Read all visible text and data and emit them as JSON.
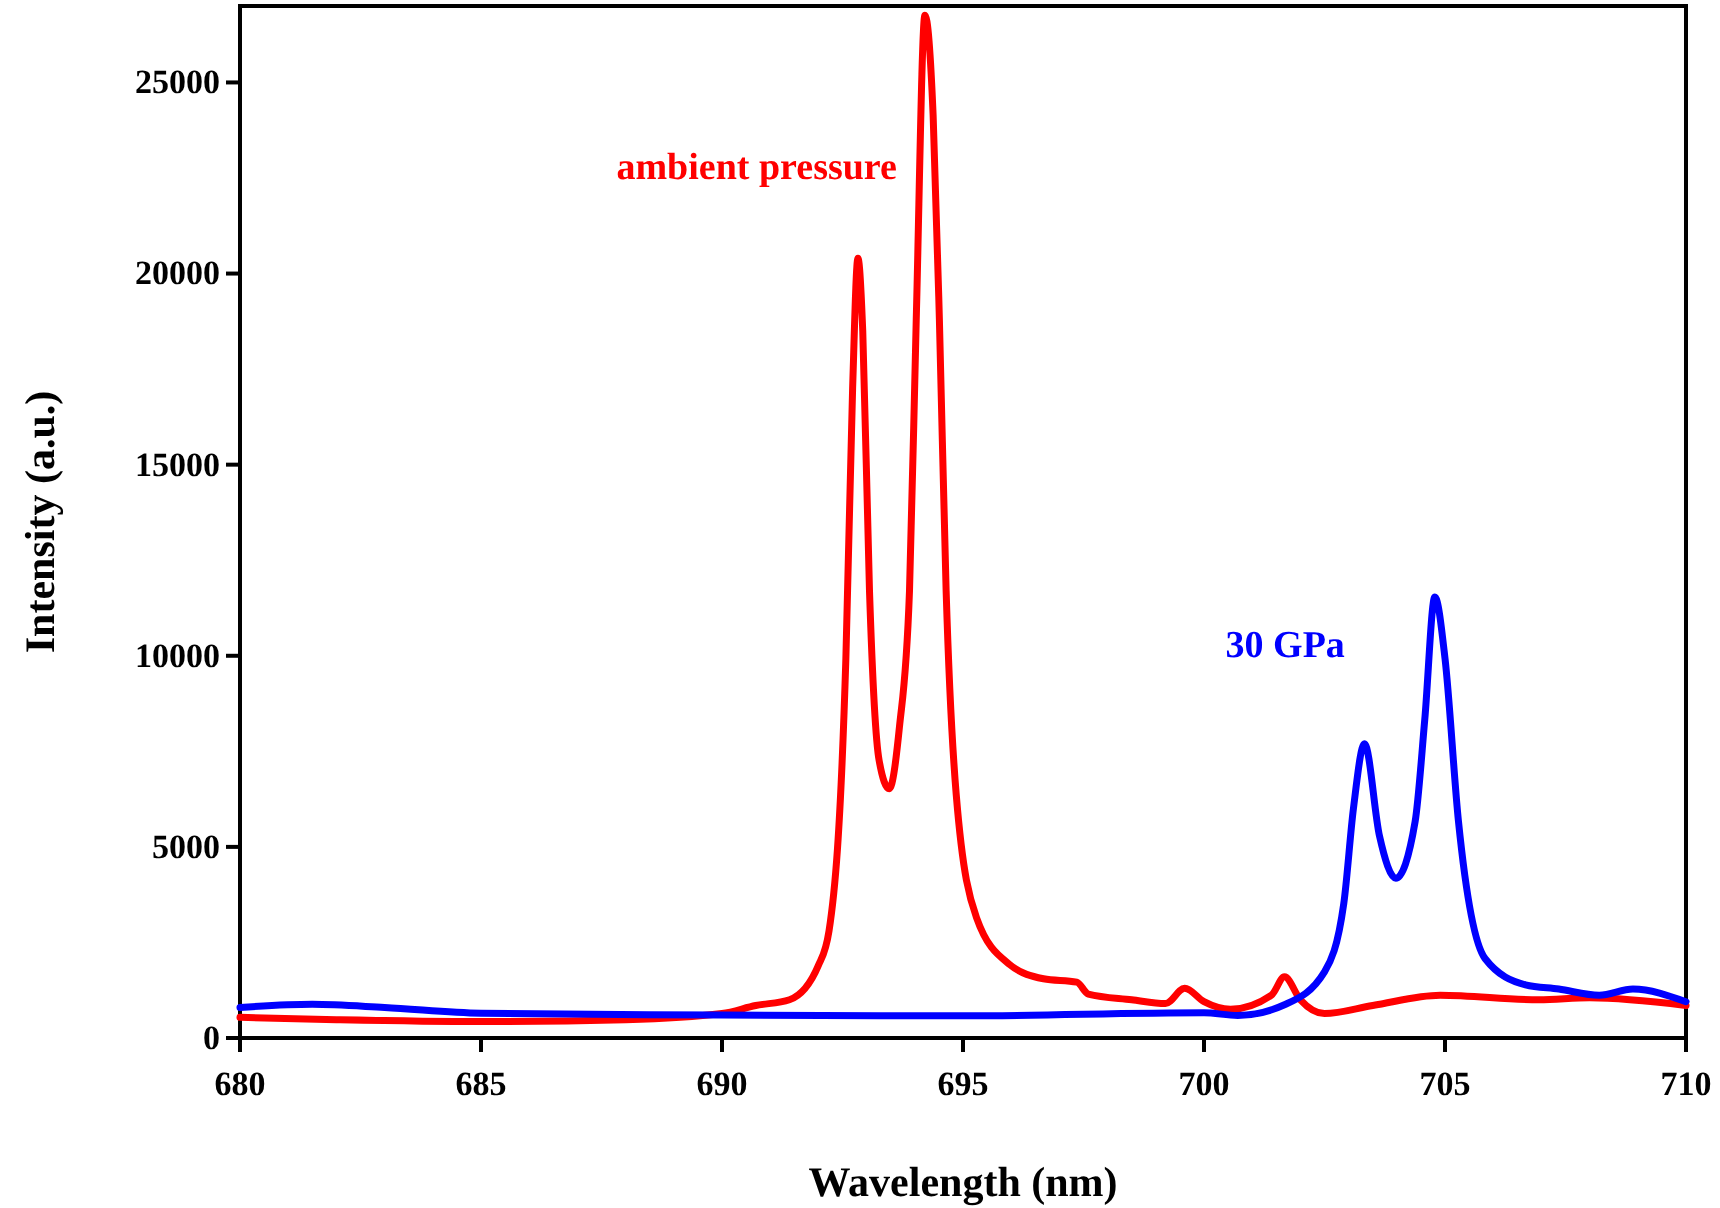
{
  "chart_data": {
    "type": "line",
    "xlabel": "Wavelength (nm)",
    "ylabel": "Intensity (a.u.)",
    "xlim": [
      680,
      710
    ],
    "ylim": [
      0,
      27000
    ],
    "xticks": [
      680,
      685,
      690,
      695,
      700,
      705,
      710
    ],
    "yticks": [
      0,
      5000,
      10000,
      15000,
      20000,
      25000
    ],
    "legend": false,
    "grid": false,
    "marker": "none",
    "line_style": "solid",
    "series": [
      {
        "name": "ambient pressure",
        "color": "#ff0000",
        "x": [
          680,
          682,
          685,
          688,
          690,
          690.7,
          691.4,
          692,
          692.22,
          692.57,
          692.71,
          692.82,
          692.92,
          693.06,
          693.26,
          693.47,
          693.68,
          693.89,
          694.03,
          694.21,
          694.38,
          694.51,
          694.65,
          694.86,
          695.28,
          695.97,
          696.67,
          697.36,
          697.6,
          698.5,
          699.2,
          699.6,
          700,
          700.55,
          701.4,
          701.67,
          702,
          702.5,
          703.5,
          704.9,
          706.95,
          708,
          710
        ],
        "values": [
          540,
          480,
          430,
          480,
          640,
          850,
          1000,
          1900,
          2800,
          9930,
          17000,
          20400,
          18500,
          11700,
          7260,
          6520,
          8120,
          11700,
          18800,
          26760,
          24150,
          18800,
          11700,
          6360,
          3150,
          1920,
          1550,
          1460,
          1150,
          1000,
          900,
          1300,
          950,
          750,
          1120,
          1600,
          1000,
          640,
          850,
          1120,
          1000,
          1050,
          850
        ]
      },
      {
        "name": "30 GPa",
        "color": "#0000ff",
        "x": [
          680,
          681.5,
          683,
          685,
          690,
          695,
          700,
          700.7,
          701.67,
          702.5,
          702.9,
          703.1,
          703.33,
          703.64,
          703.98,
          704.38,
          704.58,
          704.79,
          705,
          705.28,
          705.83,
          706.67,
          707.36,
          708.2,
          708.9,
          710
        ],
        "values": [
          800,
          880,
          800,
          650,
          600,
          580,
          660,
          590,
          870,
          1730,
          3520,
          6000,
          7700,
          5290,
          4180,
          5660,
          8330,
          11540,
          9930,
          5660,
          2080,
          1390,
          1280,
          1120,
          1280,
          950
        ]
      }
    ]
  }
}
